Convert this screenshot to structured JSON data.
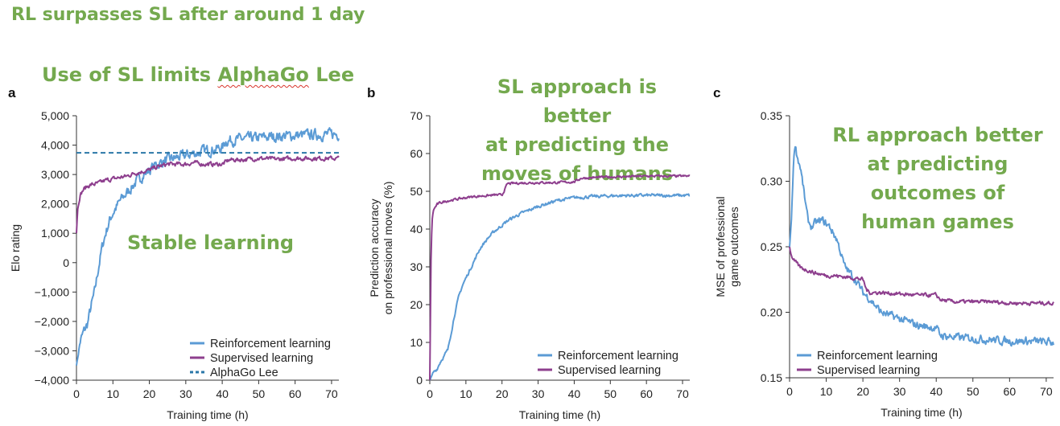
{
  "slide_title": "RL surpasses SL after around 1 day",
  "annotations": {
    "a_top_prefix": "Use of SL limits ",
    "a_top_squiggly": "AlphaGo",
    "a_top_suffix": " Lee",
    "a_middle": "Stable learning",
    "b": [
      "SL approach is better",
      "at predicting the",
      "moves of humans"
    ],
    "c": [
      "RL approach better",
      "at predicting",
      "outcomes of",
      "human games"
    ]
  },
  "colors": {
    "rl": "#5b9bd5",
    "sl": "#8e3f8e",
    "ref": "#2a77a8",
    "annotation": "#74a94e",
    "axis": "#333333"
  },
  "chart_data": [
    {
      "panel": "a",
      "type": "line",
      "xlabel": "Training time (h)",
      "ylabel": "Elo rating",
      "xlim": [
        0,
        72
      ],
      "ylim": [
        -4000,
        5000
      ],
      "xticks": [
        0,
        10,
        20,
        30,
        40,
        50,
        60,
        70
      ],
      "yticks": [
        5000,
        4000,
        3000,
        2000,
        1000,
        0,
        -1000,
        -2000,
        -3000,
        -4000
      ],
      "ytick_labels": [
        "5,000",
        "4,000",
        "3,000",
        "2,000",
        "1,000",
        "0",
        "−1,000",
        "−2,000",
        "−3,000",
        "−4,000"
      ],
      "legend_position": "bottom-right",
      "series": [
        {
          "name": "Reinforcement learning",
          "color": "#5b9bd5",
          "noise": 150,
          "x": [
            0,
            1,
            2,
            3,
            4,
            5,
            6,
            7,
            8,
            9,
            10,
            12,
            14,
            16,
            18,
            20,
            22,
            25,
            30,
            35,
            40,
            41,
            45,
            50,
            55,
            60,
            65,
            72
          ],
          "y": [
            -3500,
            -2700,
            -2350,
            -2100,
            -1500,
            -1000,
            -200,
            500,
            1000,
            1400,
            1700,
            2100,
            2400,
            2700,
            2950,
            3150,
            3350,
            3500,
            3650,
            3800,
            3900,
            4150,
            4200,
            4250,
            4300,
            4330,
            4350,
            4380
          ]
        },
        {
          "name": "Supervised learning",
          "color": "#8e3f8e",
          "noise": 60,
          "x": [
            0,
            0.3,
            1,
            2,
            3,
            4,
            6,
            8,
            10,
            12,
            14,
            16,
            18,
            20,
            22,
            25,
            28,
            30,
            32,
            35,
            40,
            42,
            45,
            50,
            55,
            60,
            65,
            72
          ],
          "y": [
            1000,
            1800,
            2300,
            2500,
            2600,
            2650,
            2700,
            2800,
            2850,
            2900,
            2950,
            3050,
            3100,
            3150,
            3250,
            3350,
            3350,
            3350,
            3400,
            3350,
            3350,
            3500,
            3500,
            3550,
            3520,
            3550,
            3550,
            3550
          ]
        },
        {
          "name": "AlphaGo Lee",
          "color": "#2a77a8",
          "dashed": true,
          "x": [
            0,
            72
          ],
          "y": [
            3739,
            3739
          ]
        }
      ]
    },
    {
      "panel": "b",
      "type": "line",
      "xlabel": "Training time (h)",
      "ylabel": [
        "Prediction accuracy",
        "on professional moves (%)"
      ],
      "xlim": [
        0,
        72
      ],
      "ylim": [
        0,
        70
      ],
      "xticks": [
        0,
        10,
        20,
        30,
        40,
        50,
        60,
        70
      ],
      "yticks": [
        0,
        10,
        20,
        30,
        40,
        50,
        60,
        70
      ],
      "ytick_labels": [
        "0",
        "10",
        "20",
        "30",
        "40",
        "50",
        "60",
        "70"
      ],
      "legend_position": "bottom-right",
      "series": [
        {
          "name": "Reinforcement learning",
          "color": "#5b9bd5",
          "noise": 0.35,
          "x": [
            0,
            1,
            2,
            3,
            4,
            5,
            6,
            7,
            8,
            9,
            10,
            12,
            14,
            16,
            18,
            20,
            22,
            25,
            30,
            35,
            40,
            45,
            50,
            55,
            60,
            65,
            72
          ],
          "y": [
            0,
            2,
            3,
            5,
            6.5,
            8,
            13,
            18,
            22,
            25,
            27,
            31,
            35,
            37.5,
            39.5,
            41,
            42.5,
            44,
            46,
            47.5,
            48.3,
            48.6,
            48.8,
            48.9,
            48.9,
            48.9,
            48.9
          ]
        },
        {
          "name": "Supervised learning",
          "color": "#8e3f8e",
          "noise": 0.25,
          "x": [
            0,
            0.3,
            0.6,
            1,
            2,
            3,
            5,
            8,
            10,
            12,
            15,
            18,
            20,
            21,
            21.5,
            25,
            30,
            35,
            40,
            41,
            42,
            45,
            50,
            55,
            60,
            65,
            72
          ],
          "y": [
            0,
            30,
            42,
            45,
            46.5,
            47,
            47.5,
            48,
            48.3,
            48.6,
            48.8,
            49,
            49,
            51,
            52,
            52.2,
            52.3,
            52.3,
            52.5,
            53,
            53.5,
            53.6,
            53.8,
            53.9,
            54,
            54,
            54
          ]
        }
      ]
    },
    {
      "panel": "c",
      "type": "line",
      "xlabel": "Training time (h)",
      "ylabel": [
        "MSE of professional",
        "game outcomes"
      ],
      "xlim": [
        0,
        72
      ],
      "ylim": [
        0.15,
        0.35
      ],
      "xticks": [
        0,
        10,
        20,
        30,
        40,
        50,
        60,
        70
      ],
      "yticks": [
        0.15,
        0.2,
        0.25,
        0.3,
        0.35
      ],
      "ytick_labels": [
        "0.15",
        "0.20",
        "0.25",
        "0.30",
        "0.35"
      ],
      "legend_position": "bottom-left",
      "series": [
        {
          "name": "Reinforcement learning",
          "color": "#5b9bd5",
          "noise": 0.0025,
          "x": [
            0,
            0.5,
            1,
            1.5,
            2,
            3,
            4,
            5,
            6,
            7,
            9,
            11,
            13,
            15,
            18,
            20,
            22,
            25,
            30,
            35,
            40,
            41,
            42,
            45,
            50,
            55,
            60,
            65,
            72
          ],
          "y": [
            0.25,
            0.27,
            0.31,
            0.33,
            0.32,
            0.31,
            0.29,
            0.27,
            0.265,
            0.268,
            0.27,
            0.265,
            0.255,
            0.235,
            0.225,
            0.215,
            0.21,
            0.2,
            0.195,
            0.19,
            0.188,
            0.183,
            0.182,
            0.181,
            0.18,
            0.179,
            0.178,
            0.178,
            0.177
          ]
        },
        {
          "name": "Supervised learning",
          "color": "#8e3f8e",
          "noise": 0.0012,
          "x": [
            0,
            0.3,
            1,
            2,
            3,
            5,
            7,
            10,
            12,
            15,
            18,
            20,
            21,
            22,
            25,
            30,
            35,
            40,
            41,
            42,
            45,
            50,
            55,
            60,
            65,
            72
          ],
          "y": [
            0.25,
            0.245,
            0.24,
            0.237,
            0.234,
            0.232,
            0.23,
            0.228,
            0.228,
            0.227,
            0.226,
            0.225,
            0.217,
            0.215,
            0.215,
            0.214,
            0.213,
            0.213,
            0.21,
            0.209,
            0.208,
            0.208,
            0.208,
            0.207,
            0.207,
            0.207
          ]
        }
      ]
    }
  ]
}
